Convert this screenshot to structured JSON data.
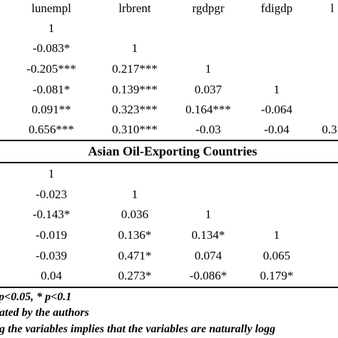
{
  "table": {
    "columns": [
      "lunempl",
      "lrbrent",
      "rgdpgr",
      "fdigdp",
      "l"
    ],
    "section1_rows": [
      [
        "1",
        "",
        "",
        "",
        ""
      ],
      [
        "-0.083*",
        "1",
        "",
        "",
        ""
      ],
      [
        "-0.205***",
        "0.217***",
        "1",
        "",
        ""
      ],
      [
        "-0.081*",
        "0.139***",
        "0.037",
        "1",
        ""
      ],
      [
        "0.091**",
        "0.323***",
        "0.164***",
        "-0.064",
        ""
      ],
      [
        "0.656***",
        "0.310***",
        "-0.03",
        "-0.04",
        "0.3"
      ]
    ],
    "section2_title": "Asian Oil-Exporting Countries",
    "section2_rows": [
      [
        "1",
        "",
        "",
        "",
        ""
      ],
      [
        "-0.023",
        "1",
        "",
        "",
        ""
      ],
      [
        "-0.143*",
        "0.036",
        "1",
        "",
        ""
      ],
      [
        "-0.019",
        "0.136*",
        "0.134*",
        "1",
        ""
      ],
      [
        "-0.039",
        "0.471*",
        "0.074",
        "0.065",
        ""
      ],
      [
        "0.04",
        "0.273*",
        "-0.086*",
        "0.179*",
        ""
      ]
    ]
  },
  "notes": [
    "p<0.05, * p<0.1",
    "ated by the authors",
    "g the variables implies that the variables are naturally logg"
  ]
}
